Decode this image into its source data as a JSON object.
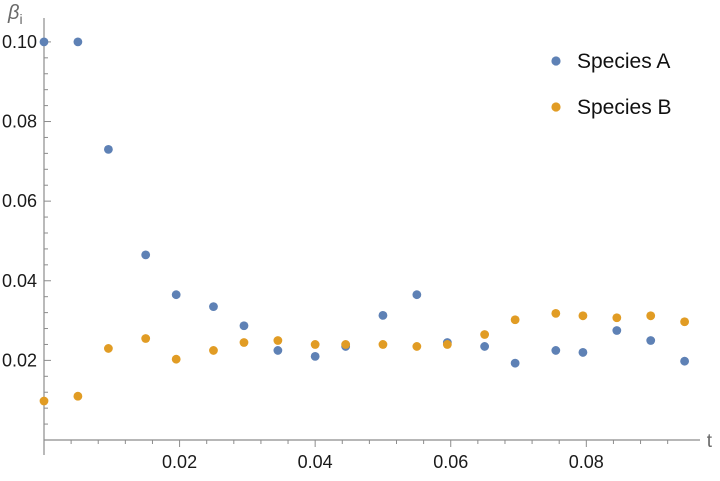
{
  "chart_data": {
    "type": "scatter",
    "title": "",
    "xlabel": "t",
    "ylabel": "β",
    "ylabel_subscript": "i",
    "xlim": [
      0,
      0.095
    ],
    "ylim": [
      0.0,
      0.105
    ],
    "x_ticks": [
      0.02,
      0.04,
      0.06,
      0.08
    ],
    "x_tick_labels": [
      "0.02",
      "0.04",
      "0.06",
      "0.08"
    ],
    "y_ticks": [
      0.02,
      0.04,
      0.06,
      0.08,
      0.1
    ],
    "y_tick_labels": [
      "0.02",
      "0.04",
      "0.06",
      "0.08",
      "0.10"
    ],
    "grid": false,
    "legend_position": "top-right",
    "series": [
      {
        "name": "Species A",
        "color": "#5E81B5",
        "x": [
          0.0,
          0.005,
          0.0095,
          0.015,
          0.0195,
          0.025,
          0.0295,
          0.0345,
          0.04,
          0.0445,
          0.05,
          0.055,
          0.0595,
          0.065,
          0.0695,
          0.0755,
          0.0795,
          0.0845,
          0.0895,
          0.0945
        ],
        "y": [
          0.1,
          0.1,
          0.073,
          0.0465,
          0.0365,
          0.0335,
          0.0287,
          0.0225,
          0.021,
          0.0235,
          0.0313,
          0.0365,
          0.0245,
          0.0235,
          0.0193,
          0.0225,
          0.022,
          0.0275,
          0.025,
          0.0198
        ]
      },
      {
        "name": "Species B",
        "color": "#E19C24",
        "x": [
          0.0,
          0.005,
          0.0095,
          0.015,
          0.0195,
          0.025,
          0.0295,
          0.0345,
          0.04,
          0.0445,
          0.05,
          0.055,
          0.0595,
          0.065,
          0.0695,
          0.0755,
          0.0795,
          0.0845,
          0.0895,
          0.0945
        ],
        "y": [
          0.0098,
          0.011,
          0.023,
          0.0255,
          0.0203,
          0.0225,
          0.0245,
          0.025,
          0.024,
          0.024,
          0.024,
          0.0235,
          0.024,
          0.0265,
          0.0302,
          0.0318,
          0.0312,
          0.0307,
          0.0312,
          0.0297
        ]
      }
    ]
  }
}
